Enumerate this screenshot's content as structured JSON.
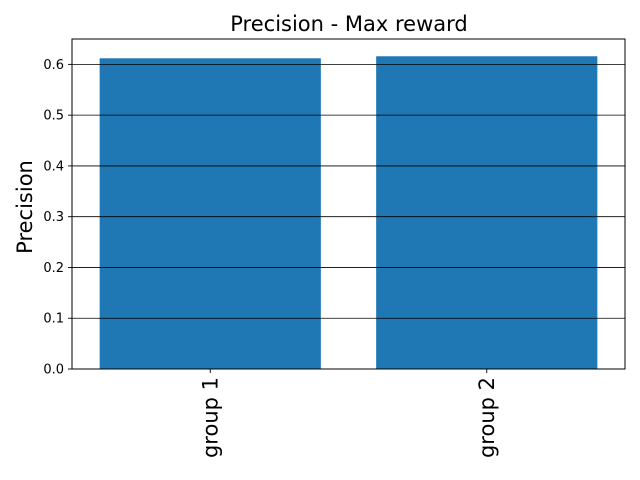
{
  "chart_data": {
    "type": "bar",
    "title": "Precision - Max reward",
    "xlabel": "",
    "ylabel": "Precision",
    "categories": [
      "group 1",
      "group 2"
    ],
    "values": [
      0.612,
      0.616
    ],
    "ylim": [
      0,
      0.65
    ],
    "yticks": [
      "0.0",
      "0.1",
      "0.2",
      "0.3",
      "0.4",
      "0.5",
      "0.6"
    ],
    "grid": "horizontal",
    "bar_color": "#1f77b4",
    "grid_color": "#000000"
  }
}
